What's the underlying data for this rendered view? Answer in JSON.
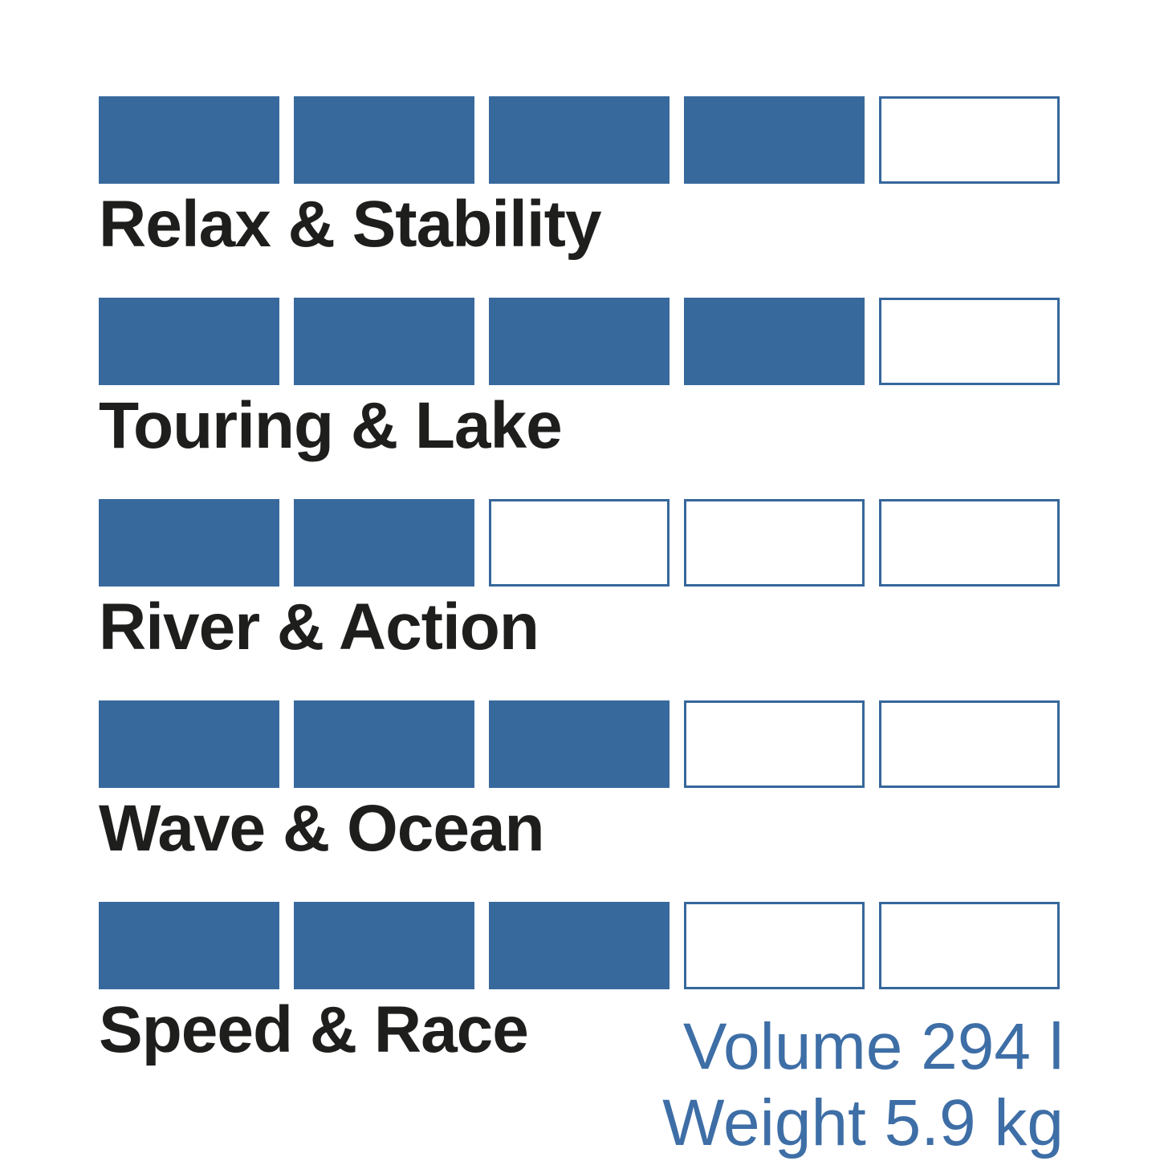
{
  "chart_data": {
    "type": "bar",
    "title": "",
    "categories": [
      "Relax & Stability",
      "Touring & Lake",
      "River & Action",
      "Wave & Ocean",
      "Speed & Race"
    ],
    "values": [
      4,
      4,
      2,
      3,
      3
    ],
    "scale": {
      "min": 0,
      "max": 5,
      "unit": "filled boxes of 5"
    },
    "legend": "none",
    "annotations": [
      "Volume 294 l",
      "Weight 5.9 kg"
    ]
  },
  "ratings": [
    {
      "label": "Relax & Stability",
      "value": 4,
      "max": 5
    },
    {
      "label": "Touring & Lake",
      "value": 4,
      "max": 5
    },
    {
      "label": "River & Action",
      "value": 2,
      "max": 5
    },
    {
      "label": "Wave & Ocean",
      "value": 3,
      "max": 5
    },
    {
      "label": "Speed & Race",
      "value": 3,
      "max": 5
    }
  ],
  "specs": {
    "volume": "Volume 294 l",
    "weight": "Weight 5.9 kg"
  },
  "colors": {
    "box_fill": "#38699D",
    "box_border": "#36679B",
    "label_text": "#1E1E1C",
    "spec_text": "#3E6EA6",
    "background": "#FFFFFF"
  }
}
